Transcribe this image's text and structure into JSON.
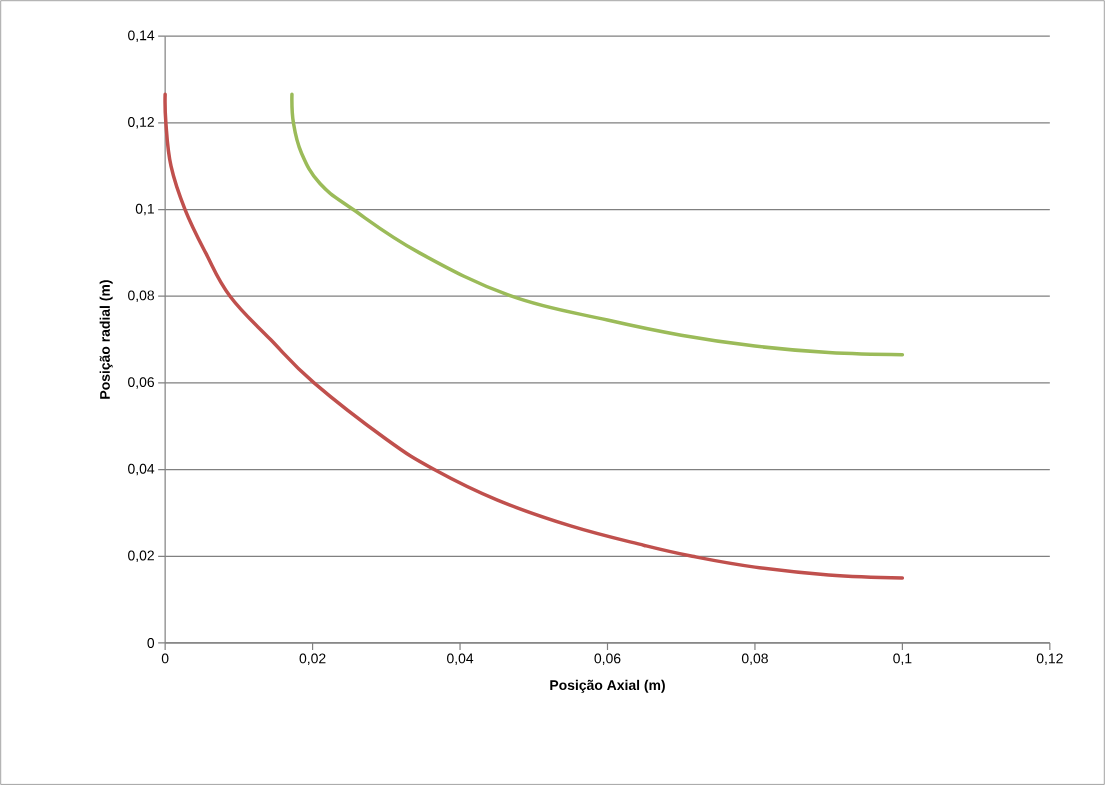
{
  "chart_data": {
    "type": "line",
    "xlabel": "Posição Axial (m)",
    "ylabel": "Posição radial (m)",
    "xlim": [
      0,
      0.12
    ],
    "ylim": [
      0,
      0.14
    ],
    "xticks": [
      {
        "value": 0,
        "label": "0"
      },
      {
        "value": 0.02,
        "label": "0,02"
      },
      {
        "value": 0.04,
        "label": "0,04"
      },
      {
        "value": 0.06,
        "label": "0,06"
      },
      {
        "value": 0.08,
        "label": "0,08"
      },
      {
        "value": 0.1,
        "label": "0,1"
      },
      {
        "value": 0.12,
        "label": "0,12"
      }
    ],
    "yticks": [
      {
        "value": 0,
        "label": "0"
      },
      {
        "value": 0.02,
        "label": "0,02"
      },
      {
        "value": 0.04,
        "label": "0,04"
      },
      {
        "value": 0.06,
        "label": "0,06"
      },
      {
        "value": 0.08,
        "label": "0,08"
      },
      {
        "value": 0.1,
        "label": "0,1"
      },
      {
        "value": 0.12,
        "label": "0,12"
      },
      {
        "value": 0.14,
        "label": "0,14"
      }
    ],
    "grid": "y",
    "marker": "none",
    "series": [
      {
        "color": "#c0504d",
        "x": [
          0.0,
          0.0001,
          0.0008,
          0.0027,
          0.0055,
          0.0088,
          0.0143,
          0.0202,
          0.03,
          0.0365,
          0.045,
          0.055,
          0.065,
          0.0715,
          0.08,
          0.09,
          0.1
        ],
        "values": [
          0.1266,
          0.12,
          0.11,
          0.1,
          0.09,
          0.08,
          0.07,
          0.06,
          0.047,
          0.04,
          0.033,
          0.027,
          0.0225,
          0.02,
          0.0175,
          0.0157,
          0.015
        ]
      },
      {
        "color": "#9bbb59",
        "x": [
          0.0172,
          0.0174,
          0.0185,
          0.021,
          0.0255,
          0.0345,
          0.047,
          0.06,
          0.07,
          0.08,
          0.09,
          0.1
        ],
        "values": [
          0.1266,
          0.12,
          0.113,
          0.106,
          0.1,
          0.09,
          0.08,
          0.0745,
          0.071,
          0.0685,
          0.067,
          0.0665
        ]
      }
    ]
  }
}
